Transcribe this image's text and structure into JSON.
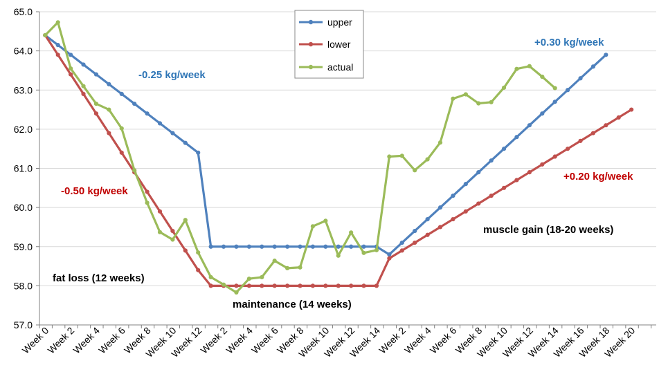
{
  "chart_data": {
    "type": "line",
    "ylim": [
      57.0,
      65.0
    ],
    "y_ticks": [
      "57.0",
      "58.0",
      "59.0",
      "60.0",
      "61.0",
      "62.0",
      "63.0",
      "64.0",
      "65.0"
    ],
    "x_tick_labels": [
      "Week 0",
      "Week 2",
      "Week 4",
      "Week 6",
      "Week 8",
      "Week 10",
      "Week 12",
      "Week 2",
      "Week 4",
      "Week 6",
      "Week 8",
      "Week 10",
      "Week 12",
      "Week 14",
      "Week 2",
      "Week 4",
      "Week 6",
      "Week 8",
      "Week 10",
      "Week 12",
      "Week 14",
      "Week 16",
      "Week 18",
      "Week 20"
    ],
    "grid": "horizontal",
    "legend_position": "top-center",
    "series": [
      {
        "name": "upper",
        "color": "#4f81bd",
        "values": [
          64.4,
          64.15,
          63.9,
          63.65,
          63.4,
          63.15,
          62.9,
          62.65,
          62.4,
          62.15,
          61.9,
          61.65,
          61.4,
          59.0,
          59.0,
          59.0,
          59.0,
          59.0,
          59.0,
          59.0,
          59.0,
          59.0,
          59.0,
          59.0,
          59.0,
          59.0,
          59.0,
          58.8,
          59.1,
          59.4,
          59.7,
          60.0,
          60.3,
          60.6,
          60.9,
          61.2,
          61.5,
          61.8,
          62.1,
          62.4,
          62.7,
          63.0,
          63.3,
          63.6,
          63.9
        ]
      },
      {
        "name": "lower",
        "color": "#c0504d",
        "values": [
          64.4,
          63.9,
          63.4,
          62.9,
          62.4,
          61.9,
          61.4,
          60.9,
          60.4,
          59.9,
          59.4,
          58.9,
          58.4,
          58.0,
          58.0,
          58.0,
          58.0,
          58.0,
          58.0,
          58.0,
          58.0,
          58.0,
          58.0,
          58.0,
          58.0,
          58.0,
          58.0,
          58.7,
          58.9,
          59.1,
          59.3,
          59.5,
          59.7,
          59.9,
          60.1,
          60.3,
          60.5,
          60.7,
          60.9,
          61.1,
          61.3,
          61.5,
          61.7,
          61.9,
          62.1,
          62.3,
          62.5
        ]
      },
      {
        "name": "actual",
        "color": "#9bbb59",
        "values": [
          64.4,
          64.73,
          63.55,
          63.1,
          62.65,
          62.5,
          62.02,
          60.95,
          60.12,
          59.37,
          59.18,
          59.68,
          58.85,
          58.22,
          58.03,
          57.83,
          58.18,
          58.22,
          58.64,
          58.45,
          58.47,
          59.52,
          59.66,
          58.77,
          59.36,
          58.84,
          58.91,
          61.3,
          61.32,
          60.95,
          61.23,
          61.66,
          62.78,
          62.89,
          62.66,
          62.69,
          63.06,
          63.54,
          63.61,
          63.34,
          63.05
        ]
      }
    ],
    "annotations": [
      {
        "text": "-0.25 kg/week",
        "color": "#2e75b6"
      },
      {
        "text": "-0.50 kg/week",
        "color": "#c00000"
      },
      {
        "text": "fat loss (12 weeks)",
        "color": "#000000"
      },
      {
        "text": "maintenance (14 weeks)",
        "color": "#000000"
      },
      {
        "text": "+0.30 kg/week",
        "color": "#2e75b6"
      },
      {
        "text": "+0.20 kg/week",
        "color": "#c00000"
      },
      {
        "text": "muscle gain (18-20 weeks)",
        "color": "#000000"
      }
    ]
  }
}
